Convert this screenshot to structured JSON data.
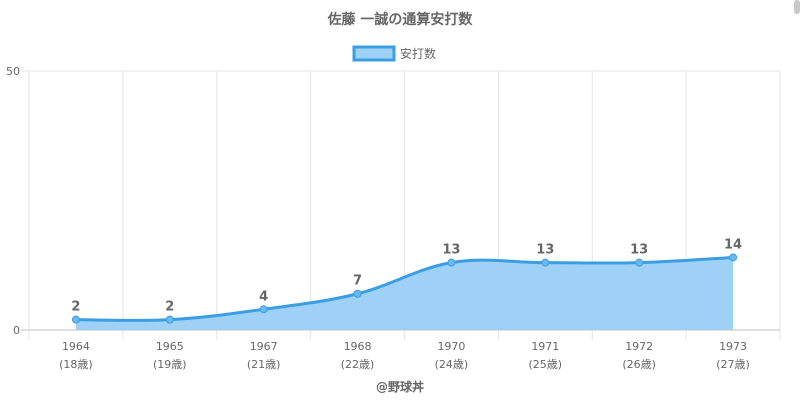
{
  "chart_data": {
    "type": "area",
    "title": "佐藤 一誠の通算安打数",
    "categories": [
      "1964",
      "1965",
      "1967",
      "1968",
      "1970",
      "1971",
      "1972",
      "1973"
    ],
    "category_sublabels": [
      "(18歳)",
      "(19歳)",
      "(21歳)",
      "(22歳)",
      "(24歳)",
      "(25歳)",
      "(26歳)",
      "(27歳)"
    ],
    "series": [
      {
        "name": "安打数",
        "values": [
          2,
          2,
          4,
          7,
          13,
          13,
          13,
          14
        ],
        "line_color": "#3a9ee4",
        "fill_color": "#9fd0f5"
      }
    ],
    "ylim": [
      0,
      50
    ],
    "y_ticks": [
      0,
      50
    ],
    "legend_position": "top",
    "grid": true,
    "credit": "@野球丼"
  }
}
